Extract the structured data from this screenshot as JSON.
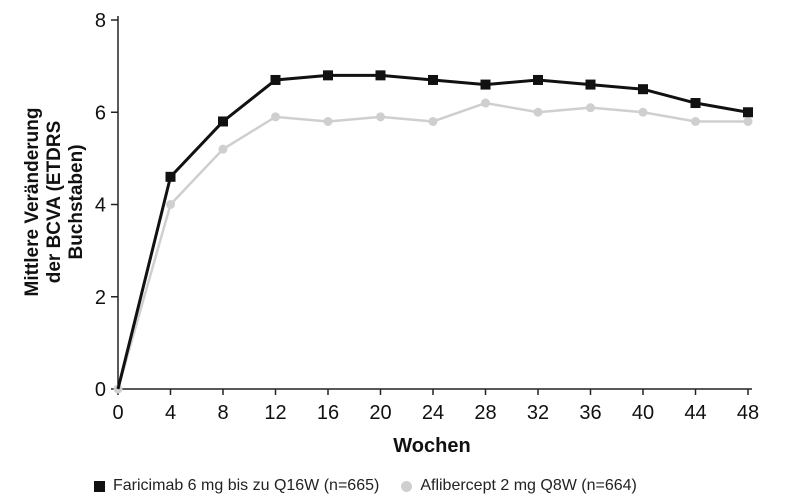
{
  "chart_data": {
    "type": "line",
    "title": "",
    "xlabel": "Wochen",
    "ylabel_lines": [
      "Mittlere Veränderung",
      "der BCVA (ETDRS",
      "Buchstaben)"
    ],
    "x": [
      0,
      4,
      8,
      12,
      16,
      20,
      24,
      28,
      32,
      36,
      40,
      44,
      48
    ],
    "x_ticks": [
      "0",
      "4",
      "8",
      "12",
      "16",
      "20",
      "24",
      "28",
      "32",
      "36",
      "40",
      "44",
      "48"
    ],
    "y_ticks": [
      "0",
      "2",
      "4",
      "6",
      "8"
    ],
    "xlim": [
      0,
      48
    ],
    "ylim": [
      0,
      8
    ],
    "grid": false,
    "legend_position": "bottom",
    "series": [
      {
        "name": "Faricimab 6 mg bis zu Q16W (n=665)",
        "color": "#111111",
        "marker": "square",
        "values": [
          0,
          4.6,
          5.8,
          6.7,
          6.8,
          6.8,
          6.7,
          6.6,
          6.7,
          6.6,
          6.5,
          6.2,
          6.0
        ]
      },
      {
        "name": "Aflibercept 2 mg Q8W (n=664)",
        "color": "#cfcfcf",
        "marker": "circle",
        "values": [
          0,
          4.0,
          5.2,
          5.9,
          5.8,
          5.9,
          5.8,
          6.2,
          6.0,
          6.1,
          6.0,
          5.8,
          5.8
        ]
      }
    ]
  }
}
